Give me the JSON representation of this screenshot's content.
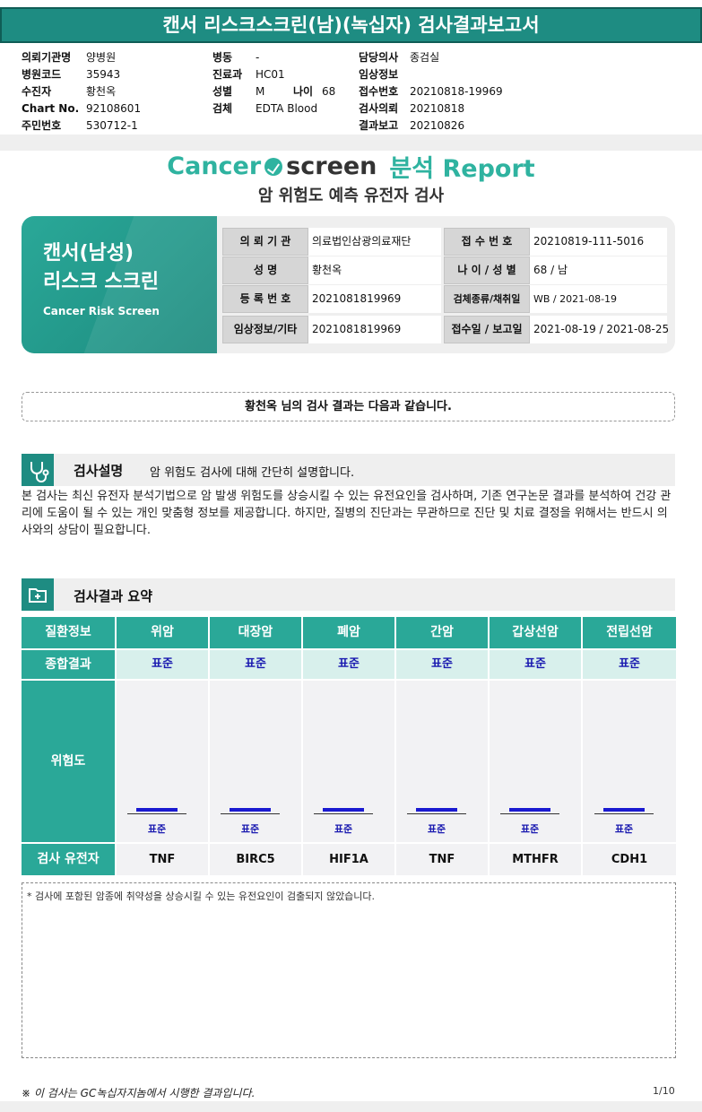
{
  "title": "캔서 리스크스크린(남)(녹십자) 검사결과보고서",
  "header": {
    "col1": [
      {
        "label": "의뢰기관명",
        "value": "양병원"
      },
      {
        "label": "병원코드",
        "value": "35943"
      },
      {
        "label": "수진자",
        "value": "황천옥"
      },
      {
        "label": "Chart No.",
        "value": "92108601"
      },
      {
        "label": "주민번호",
        "value": "530712-1"
      }
    ],
    "col2": [
      {
        "label": "병동",
        "value": "-"
      },
      {
        "label": "진료과",
        "value": "HC01"
      },
      {
        "label": "성별",
        "value": "M"
      },
      {
        "label": "검체",
        "value": "EDTA Blood"
      }
    ],
    "age_label": "나이",
    "age_value": "68",
    "col3": [
      {
        "label": "담당의사",
        "value": "종검실"
      },
      {
        "label": "임상정보",
        "value": ""
      },
      {
        "label": "접수번호",
        "value": "20210818-19969"
      },
      {
        "label": "검사의뢰",
        "value": "20210818"
      },
      {
        "label": "결과보고",
        "value": "20210826"
      }
    ]
  },
  "logo": {
    "part1": "Cancer",
    "part2": "screen",
    "part3": "분석 Report"
  },
  "subtitle": "암 위험도 예측 유전자 검사",
  "card": {
    "title_line1": "캔서(남성)",
    "title_line2": "리스크 스크린",
    "en_title": "Cancer Risk Screen",
    "rows": [
      {
        "l1": "의 뢰 기 관",
        "v1": "의료법인삼광의료재단",
        "l2": "접 수 번 호",
        "v2": "20210819-111-5016"
      },
      {
        "l1": "성       명",
        "v1": "황천옥",
        "l2": "나 이 / 성 별",
        "v2": "68 / 남"
      },
      {
        "l1": "등 록 번 호",
        "v1": "2021081819969",
        "l2": "검체종류/채취일",
        "v2": "WB / 2021-08-19"
      },
      {
        "l1": "임상정보/기타",
        "v1": "2021081819969",
        "l2": "접수일 / 보고일",
        "v2": "2021-08-19 / 2021-08-25"
      }
    ]
  },
  "result_intro": "황천옥 님의 검사 결과는 다음과 같습니다.",
  "section1": {
    "title": "검사설명",
    "desc": "암 위험도 검사에 대해 간단히 설명합니다."
  },
  "description": "본 검사는 최신 유전자 분석기법으로 암 발생 위험도를 상승시킬 수 있는 유전요인을 검사하며, 기존 연구논문 결과를 분석하여 건강 관리에 도움이 될 수 있는 개인 맞춤형 정보를 제공합니다. 하지만, 질병의 진단과는 무관하므로 진단 및 치료 결정을 위해서는 반드시 의사와의 상담이 필요합니다.",
  "section2": {
    "title": "검사결과 요약"
  },
  "table": {
    "row_labels": {
      "disease": "질환정보",
      "result": "종합결과",
      "risk": "위험도",
      "gene": "검사 유전자"
    },
    "columns": [
      {
        "name": "위암",
        "result": "표준",
        "risk_label": "표준",
        "gene": "TNF"
      },
      {
        "name": "대장암",
        "result": "표준",
        "risk_label": "표준",
        "gene": "BIRC5"
      },
      {
        "name": "폐암",
        "result": "표준",
        "risk_label": "표준",
        "gene": "HIF1A"
      },
      {
        "name": "간암",
        "result": "표준",
        "risk_label": "표준",
        "gene": "TNF"
      },
      {
        "name": "갑상선암",
        "result": "표준",
        "risk_label": "표준",
        "gene": "MTHFR"
      },
      {
        "name": "전립선암",
        "result": "표준",
        "risk_label": "표준",
        "gene": "CDH1"
      }
    ]
  },
  "note": "* 검사에 포함된 암종에 취약성을 상승시킬 수 있는 유전요인이 검출되지 않았습니다.",
  "footer": {
    "text": "※ 이 검사는 GC녹십자지놈에서 시행한 결과입니다.",
    "page": "1/10"
  },
  "colors": {
    "teal": "#2aa898",
    "dark_teal": "#1e8c82",
    "light_teal": "#d8f0ec",
    "risk_bar": "#1a1ad0"
  }
}
